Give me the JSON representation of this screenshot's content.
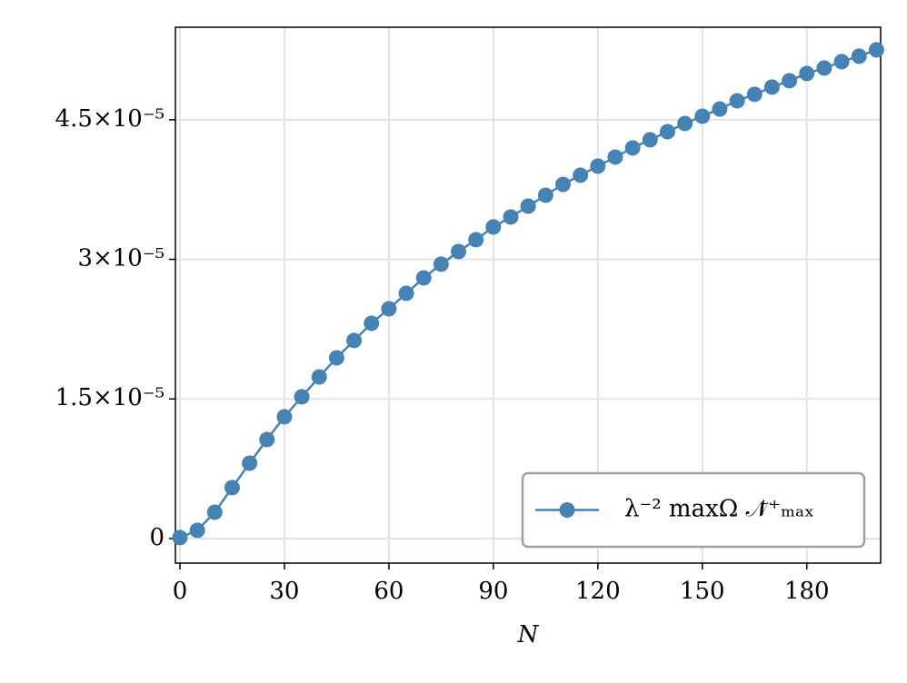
{
  "chart_data": {
    "type": "line",
    "x_label": "N",
    "x": [
      0,
      5,
      10,
      15,
      20,
      25,
      30,
      35,
      40,
      45,
      50,
      55,
      60,
      65,
      70,
      75,
      80,
      85,
      90,
      95,
      100,
      105,
      110,
      115,
      120,
      125,
      130,
      135,
      140,
      145,
      150,
      155,
      160,
      165,
      170,
      175,
      180,
      185,
      190,
      195,
      200
    ],
    "series": [
      {
        "name": "λ⁻² maxΩ 𝒩̃⁺ₘₐₓ",
        "color": "#4682b4",
        "values": [
          1e-07,
          8.8e-07,
          2.83e-06,
          5.47e-06,
          8.1e-06,
          1.064e-05,
          1.308e-05,
          1.523e-05,
          1.737e-05,
          1.942e-05,
          2.128e-05,
          2.313e-05,
          2.469e-05,
          2.635e-05,
          2.801e-05,
          2.948e-05,
          3.084e-05,
          3.211e-05,
          3.348e-05,
          3.455e-05,
          3.572e-05,
          3.689e-05,
          3.806e-05,
          3.904e-05,
          4.002e-05,
          4.099e-05,
          4.197e-05,
          4.285e-05,
          4.372e-05,
          4.46e-05,
          4.538e-05,
          4.616e-05,
          4.704e-05,
          4.773e-05,
          4.851e-05,
          4.919e-05,
          4.997e-05,
          5.056e-05,
          5.124e-05,
          5.183e-05,
          5.251e-05
        ]
      }
    ],
    "xlim": [
      -1.3,
      201.2
    ],
    "ylim": [
      -2.64e-06,
      5.494e-05
    ],
    "xticks": [
      0,
      30,
      60,
      90,
      120,
      150,
      180
    ],
    "yticks": [
      0,
      {
        "value": 1.5e-05,
        "label": "1.5×10⁻⁵"
      },
      {
        "value": 3e-05,
        "label": "3×10⁻⁵"
      },
      {
        "value": 4.5e-05,
        "label": "4.5×10⁻⁵"
      }
    ],
    "grid": true,
    "legend": "lower right"
  }
}
